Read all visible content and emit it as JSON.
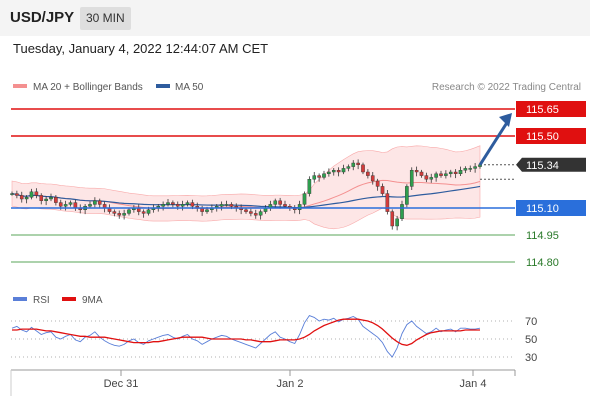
{
  "header": {
    "symbol": "USD/JPY",
    "timeframe": "30 MIN",
    "datetime": "Tuesday, January 4, 2022 12:44:07 AM CET"
  },
  "legend": {
    "ma20_bb": "MA 20 + Bollinger Bands",
    "ma50": "MA 50",
    "rsi": "RSI",
    "ma9": "9MA",
    "credit": "Research © 2022 Trading Central"
  },
  "colors": {
    "resistance": "#e01010",
    "support": "#2a6fdb",
    "target": "#5aa45a",
    "bollinger": "#f8a0a0",
    "ma50": "#2e5c9e",
    "rsi": "#5a7fd8",
    "ma9": "#e01010",
    "arrow": "#2e5c9e",
    "current": "#333333"
  },
  "chart_data": [
    {
      "type": "candlestick",
      "ylim": [
        114.7,
        115.7
      ],
      "x_ticks": [
        "Dec 31",
        "Jan 2",
        "Jan 4"
      ],
      "current_price": "115.34",
      "levels": [
        {
          "value": 115.65,
          "label": "115.65",
          "kind": "resistance"
        },
        {
          "value": 115.5,
          "label": "115.50",
          "kind": "resistance"
        },
        {
          "value": 115.1,
          "label": "115.10",
          "kind": "support"
        },
        {
          "value": 114.95,
          "label": "114.95",
          "kind": "target"
        },
        {
          "value": 114.8,
          "label": "114.80",
          "kind": "target"
        }
      ],
      "price_series": [
        115.18,
        115.17,
        115.15,
        115.16,
        115.19,
        115.17,
        115.14,
        115.15,
        115.16,
        115.13,
        115.11,
        115.12,
        115.13,
        115.1,
        115.09,
        115.11,
        115.12,
        115.14,
        115.12,
        115.1,
        115.08,
        115.07,
        115.06,
        115.07,
        115.09,
        115.1,
        115.08,
        115.07,
        115.09,
        115.1,
        115.11,
        115.12,
        115.13,
        115.12,
        115.11,
        115.12,
        115.13,
        115.11,
        115.1,
        115.08,
        115.09,
        115.1,
        115.11,
        115.12,
        115.12,
        115.11,
        115.1,
        115.09,
        115.08,
        115.07,
        115.06,
        115.08,
        115.1,
        115.12,
        115.14,
        115.12,
        115.11,
        115.1,
        115.09,
        115.12,
        115.18,
        115.26,
        115.28,
        115.27,
        115.29,
        115.3,
        115.31,
        115.3,
        115.32,
        115.33,
        115.35,
        115.34,
        115.3,
        115.28,
        115.25,
        115.22,
        115.18,
        115.08,
        115.0,
        115.04,
        115.12,
        115.22,
        115.31,
        115.3,
        115.28,
        115.26,
        115.27,
        115.29,
        115.28,
        115.29,
        115.3,
        115.29,
        115.31,
        115.32,
        115.32,
        115.33,
        115.34
      ],
      "arrow": {
        "from_value": 115.34,
        "to_value": 115.65
      }
    },
    {
      "type": "line",
      "name": "RSI",
      "ylim": [
        20,
        80
      ],
      "y_ticks": [
        "70",
        "50",
        "30"
      ],
      "y_tick_values": [
        70,
        50,
        30
      ],
      "series": [
        {
          "name": "RSI",
          "values": [
            62,
            64,
            60,
            58,
            63,
            59,
            55,
            57,
            58,
            52,
            50,
            53,
            55,
            49,
            47,
            52,
            54,
            58,
            52,
            48,
            45,
            43,
            42,
            44,
            48,
            50,
            46,
            44,
            48,
            50,
            52,
            54,
            55,
            52,
            50,
            53,
            55,
            50,
            48,
            44,
            47,
            50,
            52,
            54,
            53,
            50,
            48,
            46,
            44,
            42,
            40,
            45,
            50,
            55,
            58,
            52,
            50,
            47,
            45,
            55,
            68,
            76,
            74,
            70,
            72,
            71,
            73,
            69,
            72,
            73,
            75,
            72,
            64,
            60,
            56,
            52,
            46,
            36,
            30,
            40,
            56,
            66,
            70,
            64,
            60,
            56,
            58,
            62,
            58,
            60,
            61,
            58,
            62,
            62,
            61,
            61,
            62
          ]
        },
        {
          "name": "9MA",
          "values": [
            60,
            60,
            61,
            61,
            61,
            61,
            60,
            59,
            59,
            58,
            57,
            56,
            55,
            54,
            53,
            53,
            52,
            52,
            52,
            52,
            51,
            50,
            49,
            48,
            47,
            46,
            46,
            46,
            46,
            47,
            47,
            48,
            49,
            50,
            51,
            52,
            52,
            52,
            52,
            52,
            51,
            50,
            50,
            50,
            50,
            50,
            50,
            50,
            49,
            49,
            48,
            47,
            47,
            47,
            48,
            49,
            49,
            49,
            49,
            50,
            52,
            55,
            59,
            62,
            65,
            67,
            69,
            71,
            72,
            72,
            72,
            72,
            71,
            70,
            68,
            65,
            61,
            56,
            51,
            47,
            44,
            43,
            45,
            49,
            52,
            55,
            57,
            58,
            59,
            59,
            59,
            59,
            59,
            60,
            60,
            60,
            60
          ]
        }
      ]
    }
  ]
}
